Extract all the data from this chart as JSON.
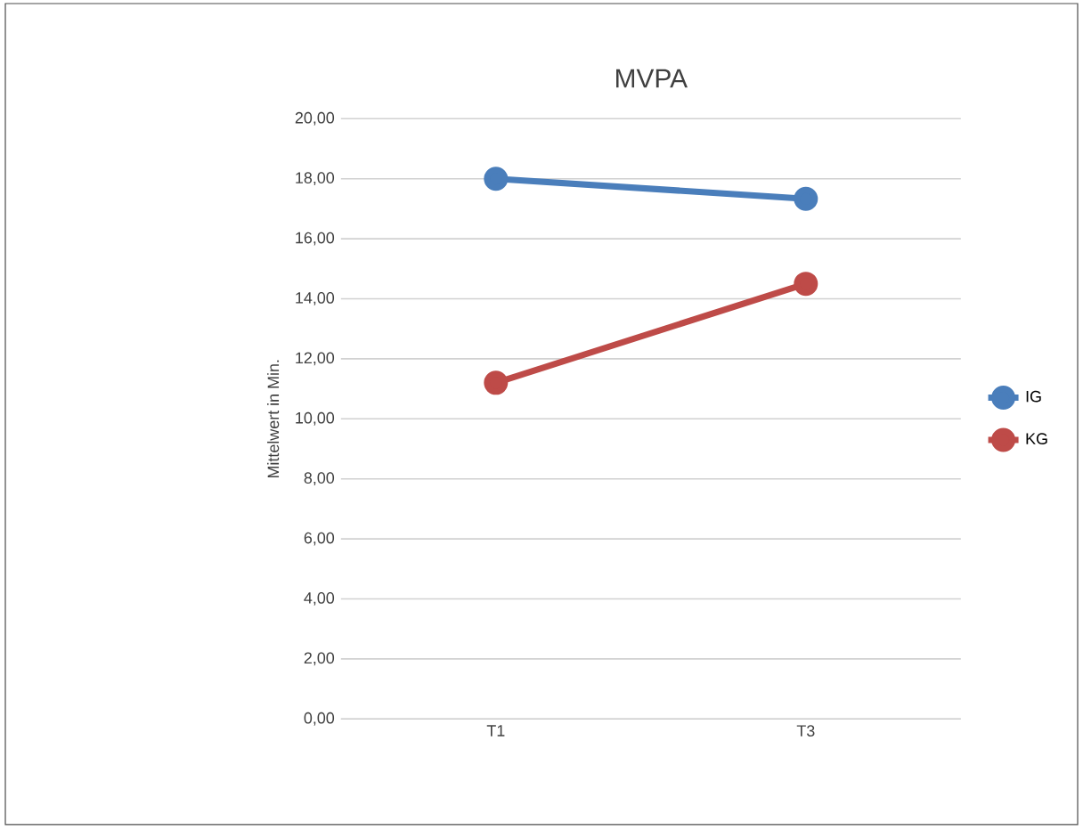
{
  "chart_data": {
    "type": "line",
    "title": "MVPA",
    "ylabel": "Mittelwert in Min.",
    "categories": [
      "T1",
      "T3"
    ],
    "series": [
      {
        "name": "IG",
        "color": "#4a7ebb",
        "values": [
          18.0,
          17.33
        ]
      },
      {
        "name": "KG",
        "color": "#be4b48",
        "values": [
          11.2,
          14.5
        ]
      }
    ],
    "ylim": [
      0,
      20
    ],
    "yticks": [
      {
        "value": 0,
        "label": "0,00"
      },
      {
        "value": 2,
        "label": "2,00"
      },
      {
        "value": 4,
        "label": "4,00"
      },
      {
        "value": 6,
        "label": "6,00"
      },
      {
        "value": 8,
        "label": "8,00"
      },
      {
        "value": 10,
        "label": "10,00"
      },
      {
        "value": 12,
        "label": "12,00"
      },
      {
        "value": 14,
        "label": "14,00"
      },
      {
        "value": 16,
        "label": "16,00"
      },
      {
        "value": 18,
        "label": "18,00"
      },
      {
        "value": 20,
        "label": "20,00"
      }
    ],
    "grid": "y",
    "legend": "right",
    "marker": "circle",
    "line_style": "solid"
  }
}
